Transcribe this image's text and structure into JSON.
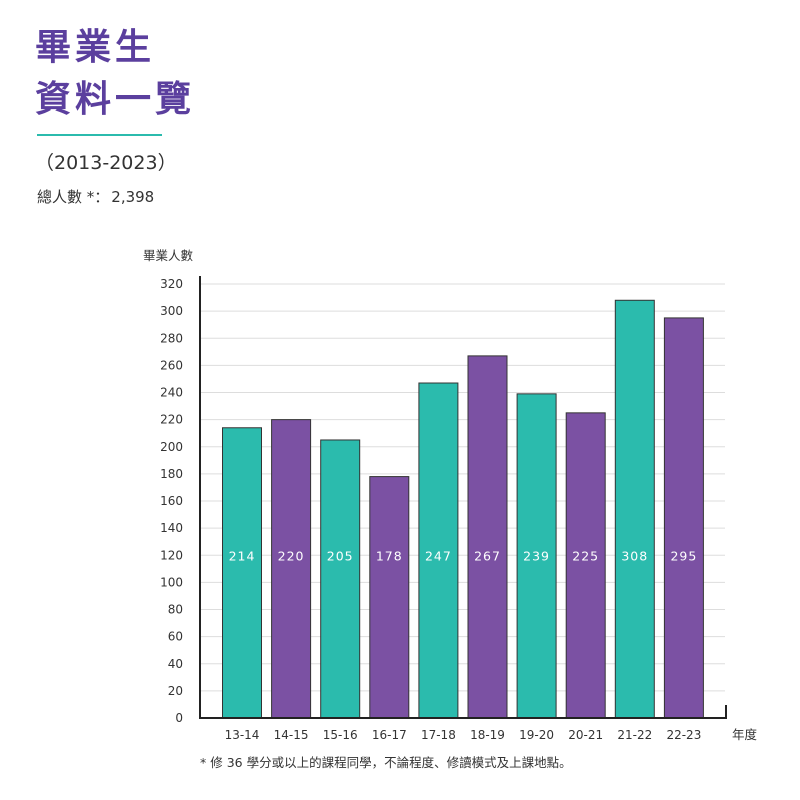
{
  "header": {
    "title_line1": "畢業生",
    "title_line2": "資料一覽",
    "period": "（2013-2023）",
    "total_label": "總人數 *：",
    "total_value": "2,398"
  },
  "footnote": "* 修 36 學分或以上的課程同學，不論程度、修讀模式及上課地點。",
  "colors": {
    "title": "#5b3f9e",
    "teal": "#2bbbad",
    "purple": "#7b51a3",
    "grid": "#dddddd",
    "axis": "#222222"
  },
  "chart_data": {
    "type": "bar",
    "ylabel": "畢業人數",
    "xlabel": "年度",
    "categories": [
      "13-14",
      "14-15",
      "15-16",
      "16-17",
      "17-18",
      "18-19",
      "19-20",
      "20-21",
      "21-22",
      "22-23"
    ],
    "values": [
      214,
      220,
      205,
      178,
      247,
      267,
      239,
      225,
      308,
      295
    ],
    "bar_colors": [
      "#2bbbad",
      "#7b51a3",
      "#2bbbad",
      "#7b51a3",
      "#2bbbad",
      "#7b51a3",
      "#2bbbad",
      "#7b51a3",
      "#2bbbad",
      "#7b51a3"
    ],
    "ylim": [
      0,
      320
    ],
    "yticks": [
      0,
      20,
      40,
      60,
      80,
      100,
      120,
      140,
      160,
      180,
      200,
      220,
      240,
      260,
      280,
      300,
      320
    ],
    "grid": true,
    "data_labels": true,
    "legend": "none"
  }
}
